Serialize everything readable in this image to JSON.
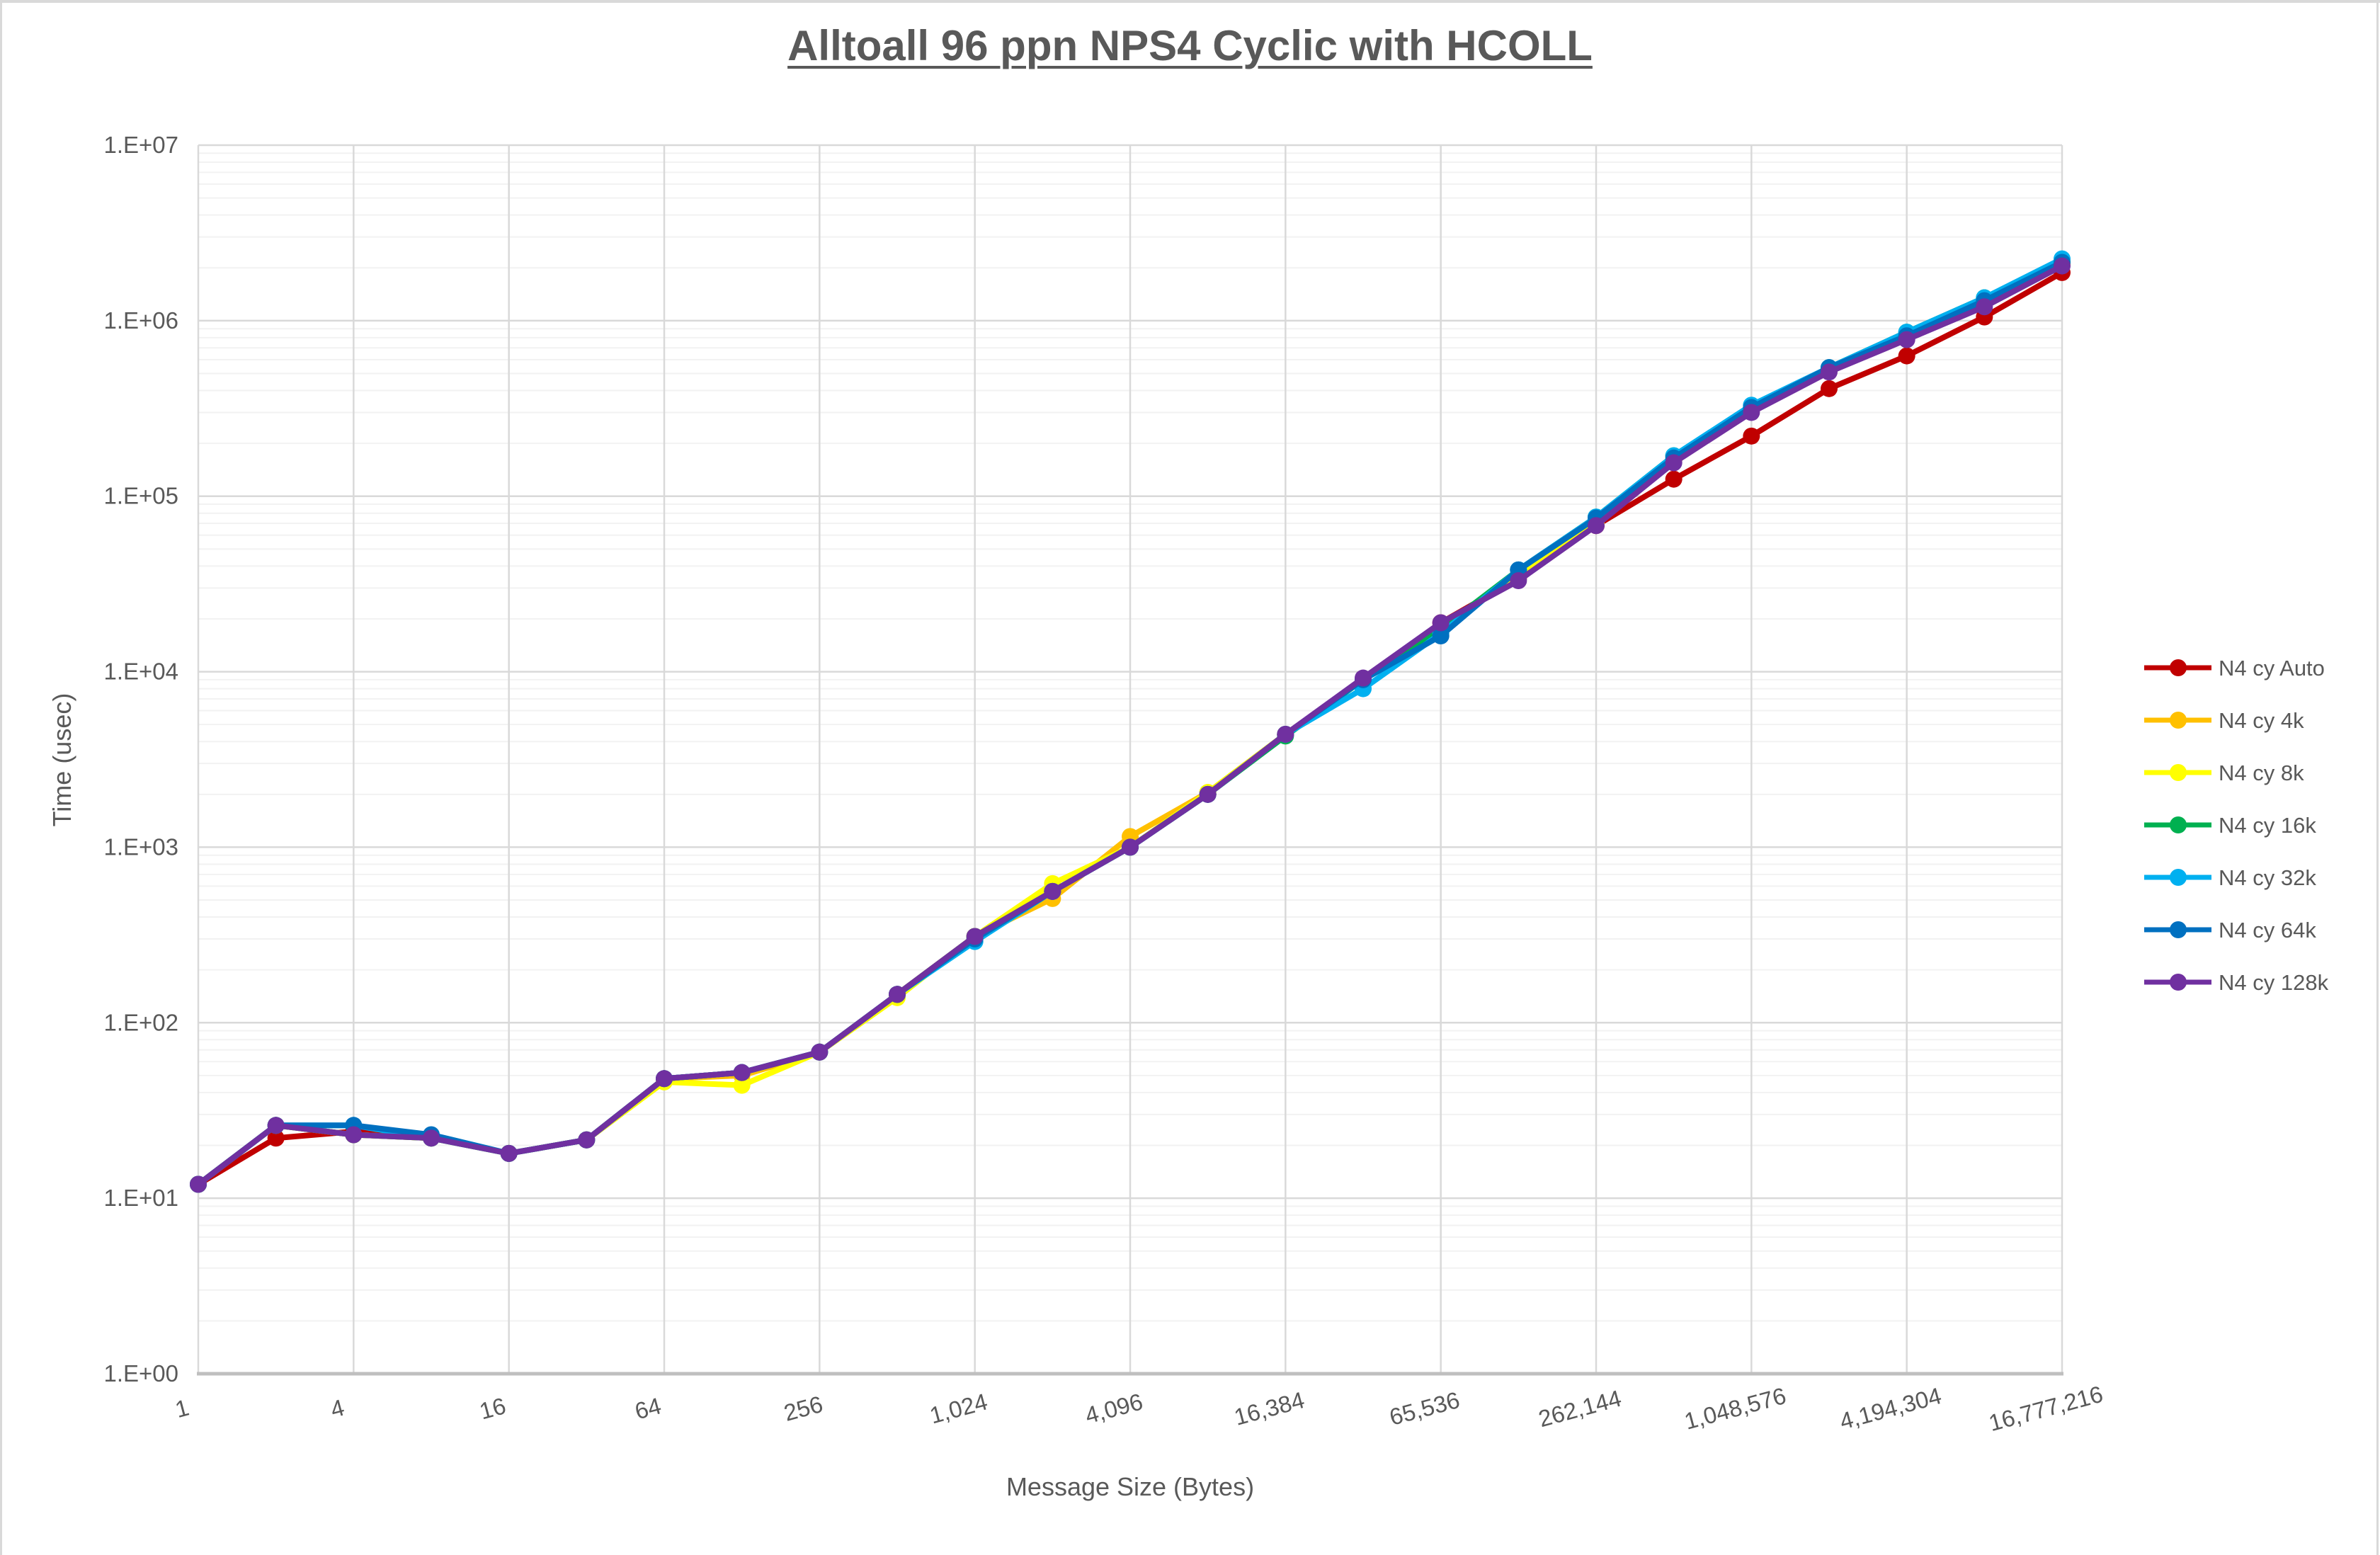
{
  "page": {
    "background": "#ffffff",
    "border_color": "#d9d9d9"
  },
  "chart_data": {
    "type": "line",
    "title": "Alltoall 96 ppn NPS4 Cyclic with HCOLL",
    "xlabel": "Message Size (Bytes)",
    "ylabel": "Time (usec)",
    "x_scale": "log2-categories",
    "y_scale": "log10",
    "y_range": [
      1,
      10000000
    ],
    "y_tick_labels": [
      "1.E+00",
      "1.E+01",
      "1.E+02",
      "1.E+03",
      "1.E+04",
      "1.E+05",
      "1.E+06",
      "1.E+07"
    ],
    "x_categories": [
      1,
      2,
      4,
      8,
      16,
      32,
      64,
      128,
      256,
      512,
      1024,
      2048,
      4096,
      8192,
      16384,
      32768,
      65536,
      131072,
      262144,
      524288,
      1048576,
      2097152,
      4194304,
      8388608,
      16777216
    ],
    "x_tick_labels": [
      "1",
      "4",
      "16",
      "64",
      "256",
      "1,024",
      "4,096",
      "16,384",
      "65,536",
      "262,144",
      "1,048,576",
      "4,194,304",
      "16,777,216"
    ],
    "grid": {
      "major_color": "#d9d9d9",
      "minor_color": "#f2f2f2",
      "axis_color": "#bfbfbf",
      "minor_on": true
    },
    "text_color": "#595959",
    "legend_position": "right",
    "series": [
      {
        "name": "N4 cy Auto",
        "color": "#C00000",
        "values": [
          12,
          22,
          24,
          22,
          18,
          21.5,
          48,
          52,
          68,
          145,
          310,
          560,
          1000,
          2000,
          4400,
          9000,
          19000,
          34000,
          68000,
          125000,
          220000,
          410000,
          630000,
          1050000,
          1880000
        ]
      },
      {
        "name": "N4 cy 4k",
        "color": "#FFC000",
        "values": [
          12,
          26,
          23,
          22,
          18,
          21.5,
          48,
          50,
          68,
          145,
          310,
          510,
          1150,
          2050,
          4400,
          9000,
          18000,
          35000,
          70000,
          160000,
          310000,
          520000,
          820000,
          1250000,
          2100000
        ]
      },
      {
        "name": "N4 cy 8k",
        "color": "#FFFF00",
        "values": [
          12,
          26,
          23,
          22,
          18,
          21.5,
          46,
          44,
          68,
          139,
          310,
          620,
          1000,
          2050,
          4400,
          9000,
          18000,
          35000,
          70000,
          160000,
          310000,
          520000,
          820000,
          1250000,
          2100000
        ]
      },
      {
        "name": "N4 cy 16k",
        "color": "#00B050",
        "values": [
          12,
          26,
          23,
          22,
          18,
          21.5,
          48,
          52,
          68,
          145,
          310,
          560,
          1000,
          2000,
          4300,
          9000,
          17500,
          38000,
          76000,
          170000,
          320000,
          540000,
          860000,
          1350000,
          2150000
        ]
      },
      {
        "name": "N4 cy 32k",
        "color": "#00B0F0",
        "values": [
          12,
          26,
          26,
          22,
          18,
          21.5,
          48,
          52,
          68,
          145,
          290,
          560,
          1000,
          2000,
          4400,
          8000,
          16500,
          38000,
          76000,
          170000,
          330000,
          540000,
          860000,
          1350000,
          2250000
        ]
      },
      {
        "name": "N4 cy 64k",
        "color": "#0070C0",
        "values": [
          12,
          26,
          26,
          23,
          18,
          21.5,
          48,
          52,
          68,
          145,
          300,
          560,
          1000,
          2000,
          4400,
          9000,
          16000,
          38000,
          75000,
          165000,
          320000,
          540000,
          820000,
          1300000,
          2150000
        ]
      },
      {
        "name": "N4 cy 128k",
        "color": "#7030A0",
        "values": [
          12,
          26,
          23,
          22,
          18,
          21.5,
          48,
          52,
          68,
          145,
          310,
          560,
          1000,
          2000,
          4400,
          9200,
          19000,
          33000,
          68000,
          155000,
          300000,
          510000,
          780000,
          1200000,
          2050000
        ]
      }
    ]
  }
}
